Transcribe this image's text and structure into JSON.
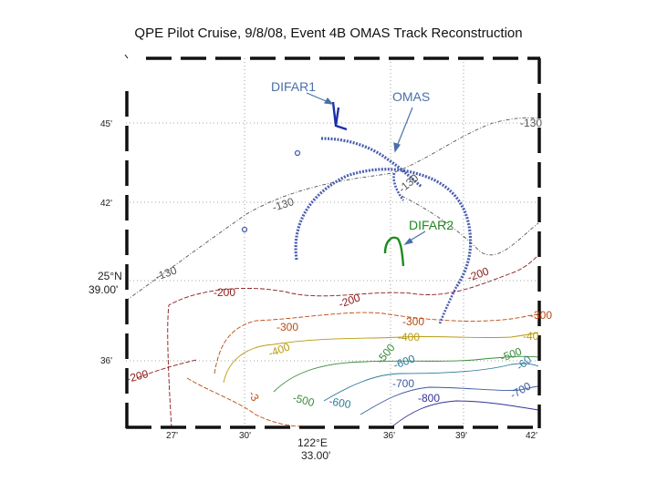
{
  "title": "QPE Pilot Cruise, 9/8/08, Event 4B OMAS Track Reconstruction",
  "annotations": {
    "difar1": "DIFAR1",
    "omas": "OMAS",
    "difar2": "DIFAR2"
  },
  "axes": {
    "lat_ticks": [
      "45'",
      "42'",
      "39.00'",
      "36'"
    ],
    "lat_label": "25°N",
    "lon_ticks": [
      "27'",
      "30'",
      "33.00'",
      "36'",
      "39'",
      "42'"
    ],
    "lon_label": "122°E"
  },
  "contour_labels": [
    {
      "text": "-130",
      "color": "#555555"
    },
    {
      "text": "-130",
      "color": "#555555"
    },
    {
      "text": "-130",
      "color": "#555555"
    },
    {
      "text": "-130",
      "color": "#555555"
    },
    {
      "text": "-200",
      "color": "#8b1a1a"
    },
    {
      "text": "-200",
      "color": "#8b1a1a"
    },
    {
      "text": "-200",
      "color": "#8b1a1a"
    },
    {
      "text": "-200",
      "color": "#8b1a1a"
    },
    {
      "text": "-300",
      "color": "#b84a10"
    },
    {
      "text": "-300",
      "color": "#b84a10"
    },
    {
      "text": "-300",
      "color": "#b84a10"
    },
    {
      "text": "-3",
      "color": "#b84a10"
    },
    {
      "text": "-400",
      "color": "#b89a10"
    },
    {
      "text": "-400",
      "color": "#b89a10"
    },
    {
      "text": "-40",
      "color": "#b89a10"
    },
    {
      "text": "-500",
      "color": "#3a8a3a"
    },
    {
      "text": "-500",
      "color": "#3a8a3a"
    },
    {
      "text": "-500",
      "color": "#3a8a3a"
    },
    {
      "text": "-600",
      "color": "#2a7a9a"
    },
    {
      "text": "-600",
      "color": "#2a7a9a"
    },
    {
      "text": "-60",
      "color": "#2a7a9a"
    },
    {
      "text": "-700",
      "color": "#3a5aa0"
    },
    {
      "text": "-700",
      "color": "#3a5aa0"
    },
    {
      "text": "-800",
      "color": "#333399"
    }
  ],
  "colors": {
    "omas_track": "#4a5fb0",
    "difar1": "#1c2fa8",
    "difar2": "#1f8a1f",
    "arrow": "#4a6fa8",
    "frame": "#111111"
  }
}
